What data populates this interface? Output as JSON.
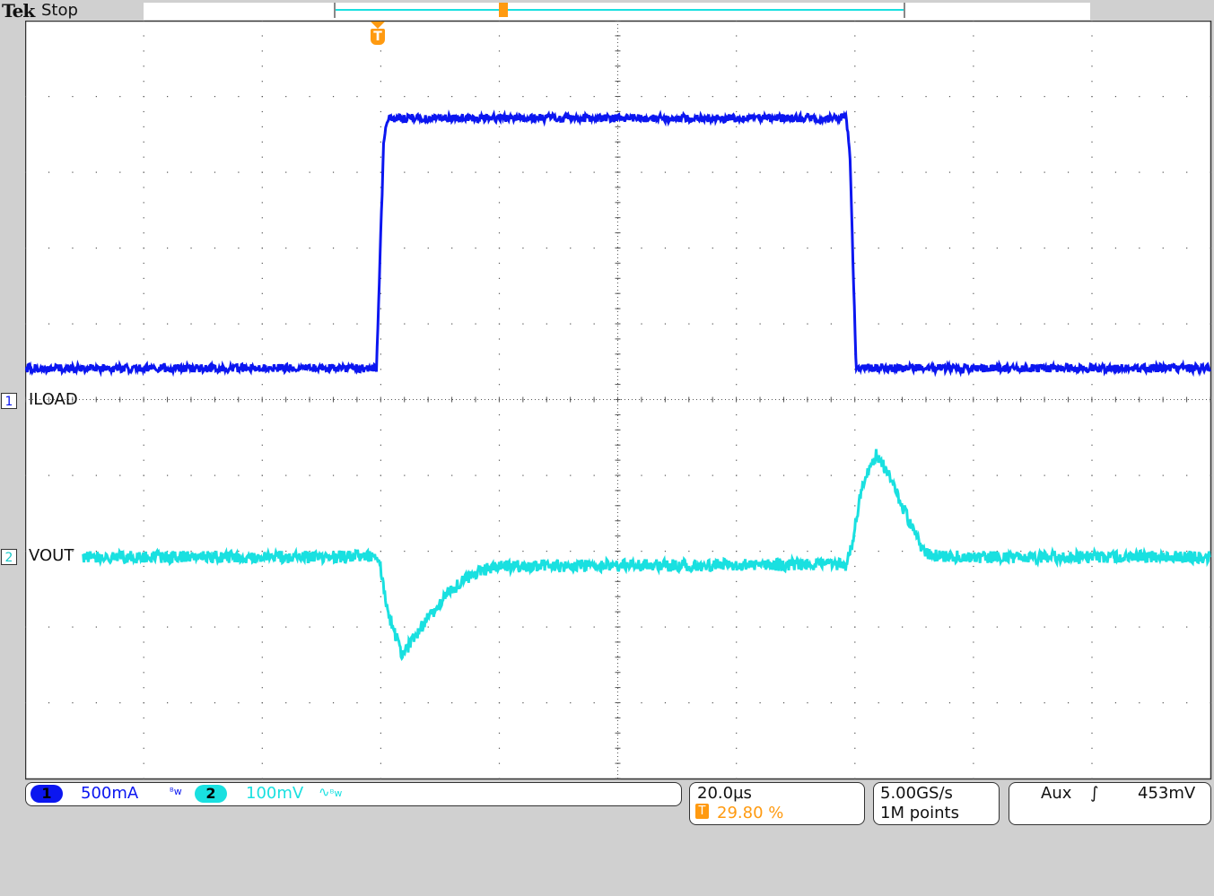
{
  "header": {
    "brand": "Tek",
    "acq_state": "Stop"
  },
  "colors": {
    "ch1": "#0b16f0",
    "ch2": "#19e0e0",
    "trigger": "#ff9a10",
    "grid": "#555555"
  },
  "channels": [
    {
      "number": "1",
      "label": "ILOAD",
      "scale": "500mA",
      "bw_icon": "bandwidth-limit-icon"
    },
    {
      "number": "2",
      "label": "VOUT",
      "scale": "100mV",
      "coupling_icon": "ac-coupling-icon",
      "bw_icon": "bandwidth-limit-icon"
    }
  ],
  "timebase": {
    "scale": "20.0µs",
    "trigger_marker": "T",
    "trigger_position": "29.80 %"
  },
  "acquisition": {
    "sample_rate": "5.00GS/s",
    "record_length": "1M points"
  },
  "trigger": {
    "source": "Aux",
    "slope_icon": "rising-edge-icon",
    "level": "453mV"
  },
  "chart_data": {
    "type": "line",
    "grid": true,
    "divisions": {
      "x": 10,
      "y": 10
    },
    "x_units": "µs",
    "xlim": [
      -59.6,
      140.4
    ],
    "series": [
      {
        "name": "ILOAD",
        "units": "A",
        "ylim_div_scale": 0.5,
        "x": [
          -59.6,
          -0.3,
          0.9,
          1.5,
          79,
          79.6,
          80.6,
          140.4
        ],
        "y": [
          0.21,
          0.21,
          1.7,
          1.86,
          1.86,
          1.6,
          0.21,
          0.21
        ]
      },
      {
        "name": "VOUT",
        "units": "mV",
        "ylim_div_scale": 100,
        "x": [
          -49.8,
          0,
          1.5,
          4,
          8,
          12,
          16,
          20,
          79,
          80,
          81.5,
          84,
          86,
          90,
          92,
          95,
          140.4
        ],
        "y": [
          0,
          0,
          -70,
          -130,
          -85,
          -45,
          -22,
          -12,
          -10,
          20,
          90,
          135,
          110,
          40,
          5,
          0,
          0
        ]
      }
    ]
  }
}
